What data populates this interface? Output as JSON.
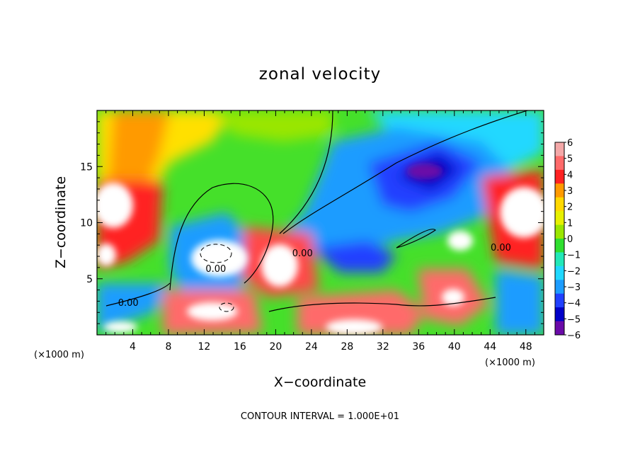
{
  "chart_data": {
    "type": "heatmap",
    "title": "zonal velocity",
    "xlabel": "X−coordinate",
    "ylabel": "Z−coordinate",
    "x_unit_left": "(×1000 m)",
    "x_unit_right": "(×1000 m)",
    "xlim": [
      0,
      50
    ],
    "ylim": [
      0,
      20
    ],
    "x_ticks": [
      4,
      8,
      12,
      16,
      20,
      24,
      28,
      32,
      36,
      40,
      44,
      48
    ],
    "x_tick_labels": [
      "4",
      "8",
      "12",
      "16",
      "20",
      "24",
      "28",
      "32",
      "36",
      "40",
      "44",
      "48"
    ],
    "y_ticks": [
      5,
      10,
      15
    ],
    "y_tick_labels": [
      "5",
      "10",
      "15"
    ],
    "colorbar": {
      "min": -6,
      "max": 6,
      "levels": [
        6,
        5,
        4,
        3,
        2,
        1,
        0,
        -1,
        -2,
        -3,
        -4,
        -5,
        -6
      ],
      "labels": [
        "6",
        "5",
        "4",
        "3",
        "2",
        "1",
        "0",
        "−1",
        "−2",
        "−3",
        "−4",
        "−5",
        "−6"
      ],
      "colors": [
        "#f4a8a8",
        "#ff6a6a",
        "#ff2222",
        "#ff9a00",
        "#ffd800",
        "#e7f000",
        "#9ae600",
        "#2fdf2f",
        "#22e8b8",
        "#20d8ff",
        "#1c9cff",
        "#2040ff",
        "#0000c8",
        "#6a0aa8"
      ]
    },
    "contour_labels": [
      {
        "text": "0.00",
        "x": 3.5,
        "y": 2.6
      },
      {
        "text": "0.00",
        "x": 13.3,
        "y": 5.6
      },
      {
        "text": "0.00",
        "x": 23.0,
        "y": 7.0
      },
      {
        "text": "0.00",
        "x": 45.2,
        "y": 7.5
      }
    ],
    "footer": "CONTOUR INTERVAL = 1.000E+01"
  }
}
